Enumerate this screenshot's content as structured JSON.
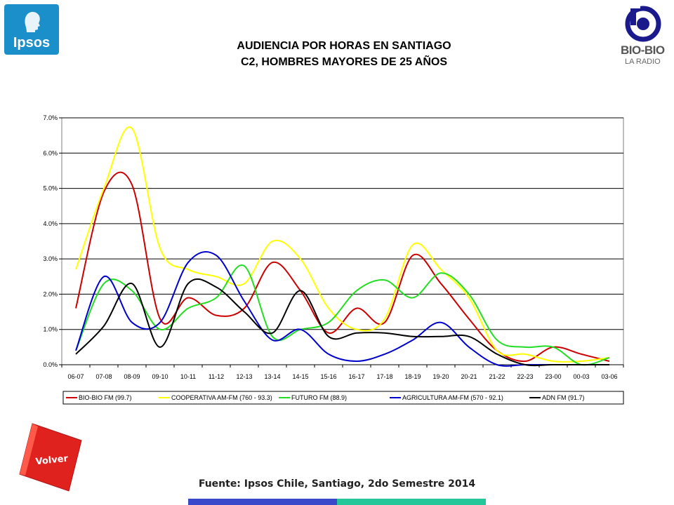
{
  "header": {
    "title_line1": "AUDIENCIA POR HORAS EN SANTIAGO",
    "title_line2": "C2, HOMBRES MAYORES DE 25 AÑOS"
  },
  "logos": {
    "ipsos_text": "Ipsos",
    "biobio_text": "BIO-BIO",
    "biobio_sub": "LA RADIO"
  },
  "footer": {
    "volver_label": "Volver",
    "source": "Fuente: Ipsos Chile, Santiago, 2do Semestre 2014"
  },
  "colors": {
    "ipsos_blue": "#1b8fc9",
    "volver_red": "#e0221f",
    "bar_blue": "#3a49c9",
    "bar_green": "#23c79a"
  },
  "chart_data": {
    "type": "line",
    "title": "",
    "xlabel": "",
    "ylabel": "",
    "ylim": [
      0,
      7
    ],
    "yticks": [
      "0.0%",
      "1.0%",
      "2.0%",
      "3.0%",
      "4.0%",
      "5.0%",
      "6.0%",
      "7.0%"
    ],
    "grid": true,
    "legend_position": "bottom",
    "categories": [
      "06-07",
      "07-08",
      "08-09",
      "09-10",
      "10-11",
      "11-12",
      "12-13",
      "13-14",
      "14-15",
      "15-16",
      "16-17",
      "17-18",
      "18-19",
      "19-20",
      "20-21",
      "21-22",
      "22-23",
      "23-00",
      "00-03",
      "03-06"
    ],
    "series": [
      {
        "name": "BIO-BIO FM (99.7)",
        "color": "#cc0000",
        "values": [
          1.6,
          4.9,
          5.1,
          1.3,
          1.9,
          1.4,
          1.6,
          2.9,
          2.1,
          0.9,
          1.6,
          1.2,
          3.1,
          2.3,
          1.3,
          0.4,
          0.1,
          0.5,
          0.3,
          0.1
        ]
      },
      {
        "name": "COOPERATIVA AM-FM (760 - 93.3)",
        "color": "#ffff00",
        "values": [
          2.7,
          5.0,
          6.7,
          3.3,
          2.7,
          2.5,
          2.3,
          3.5,
          3.0,
          1.6,
          1.0,
          1.3,
          3.4,
          2.7,
          1.9,
          0.4,
          0.3,
          0.1,
          0.1,
          0.2
        ]
      },
      {
        "name": "FUTURO FM (88.9)",
        "color": "#22dd22",
        "values": [
          0.4,
          2.3,
          2.1,
          1.0,
          1.6,
          1.9,
          2.8,
          0.8,
          1.0,
          1.2,
          2.1,
          2.4,
          1.9,
          2.6,
          2.0,
          0.7,
          0.5,
          0.5,
          0.0,
          0.2
        ]
      },
      {
        "name": "AGRICULTURA AM-FM (570 - 92.1)",
        "color": "#0000cc",
        "values": [
          0.4,
          2.5,
          1.2,
          1.2,
          2.9,
          3.1,
          1.8,
          0.7,
          1.0,
          0.3,
          0.1,
          0.3,
          0.7,
          1.2,
          0.5,
          0.0,
          0.0,
          0.0,
          0.0,
          0.0
        ]
      },
      {
        "name": "ADN FM (91.7)",
        "color": "#000000",
        "values": [
          0.3,
          1.1,
          2.3,
          0.5,
          2.3,
          2.2,
          1.5,
          0.9,
          2.1,
          0.8,
          0.9,
          0.9,
          0.8,
          0.8,
          0.8,
          0.3,
          0.0,
          0.0,
          0.0,
          0.0
        ]
      }
    ]
  }
}
